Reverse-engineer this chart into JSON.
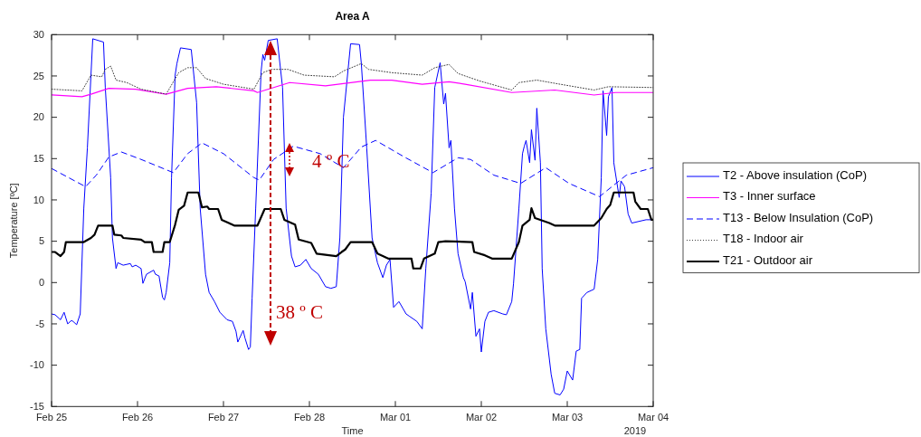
{
  "chart_data": {
    "type": "line",
    "title": "Area A",
    "xlabel": "Time",
    "ylabel": "Temperature [ºC]",
    "xlim": [
      "2019-02-25",
      "2019-03-04"
    ],
    "xticks": [
      {
        "value": "2019-02-25",
        "label": "Feb 25"
      },
      {
        "value": "2019-02-26",
        "label": "Feb 26"
      },
      {
        "value": "2019-02-27",
        "label": "Feb 27"
      },
      {
        "value": "2019-02-28",
        "label": "Feb 28"
      },
      {
        "value": "2019-03-01",
        "label": "Mar 01"
      },
      {
        "value": "2019-03-02",
        "label": "Mar 02"
      },
      {
        "value": "2019-03-03",
        "label": "Mar 03"
      },
      {
        "value": "2019-03-04",
        "label": "Mar 04"
      }
    ],
    "ylim": [
      -15,
      30
    ],
    "yticks": [
      -15,
      -10,
      -5,
      0,
      5,
      10,
      15,
      20,
      25,
      30
    ],
    "legend": "right",
    "annotations": [
      "38 º C",
      "4 º C",
      "2019"
    ],
    "series": [
      {
        "name": "T2 - Above insulation (CoP)",
        "color": "#0000ff",
        "line_style": "solid",
        "x": [
          "2019-02-25T00:00",
          "2019-02-25T01:00",
          "2019-02-25T02:30",
          "2019-02-25T03:30",
          "2019-02-25T04:30",
          "2019-02-25T05:30",
          "2019-02-25T06:00",
          "2019-02-25T07:00",
          "2019-02-25T08:00",
          "2019-02-25T09:00",
          "2019-02-25T10:00",
          "2019-02-25T11:30",
          "2019-02-25T14:30",
          "2019-02-25T15:00",
          "2019-02-25T16:30",
          "2019-02-25T17:00",
          "2019-02-25T18:00",
          "2019-02-25T18:30",
          "2019-02-25T20:00",
          "2019-02-25T22:00",
          "2019-02-25T22:30",
          "2019-02-25T23:30",
          "2019-02-26T01:00",
          "2019-02-26T01:30",
          "2019-02-26T02:30",
          "2019-02-26T04:30",
          "2019-02-26T05:00",
          "2019-02-26T06:00",
          "2019-02-26T07:00",
          "2019-02-26T07:30",
          "2019-02-26T08:00",
          "2019-02-26T09:00",
          "2019-02-26T09:30",
          "2019-02-26T10:30",
          "2019-02-26T11:00",
          "2019-02-26T12:00",
          "2019-02-26T15:00",
          "2019-02-26T16:30",
          "2019-02-26T17:30",
          "2019-02-26T19:00",
          "2019-02-26T20:00",
          "2019-02-26T21:30",
          "2019-02-26T23:00",
          "2019-02-27T01:00",
          "2019-02-27T02:30",
          "2019-02-27T03:30",
          "2019-02-27T04:00",
          "2019-02-27T05:30",
          "2019-02-27T06:00",
          "2019-02-27T07:00",
          "2019-02-27T07:30",
          "2019-02-27T08:00",
          "2019-02-27T09:00",
          "2019-02-27T10:30",
          "2019-02-27T11:00",
          "2019-02-27T11:30",
          "2019-02-27T12:30",
          "2019-02-27T15:00",
          "2019-02-27T16:30",
          "2019-02-27T17:30",
          "2019-02-27T19:00",
          "2019-02-27T20:00",
          "2019-02-27T21:30",
          "2019-02-27T23:00",
          "2019-02-28T00:30",
          "2019-02-28T02:30",
          "2019-02-28T04:30",
          "2019-02-28T06:00",
          "2019-02-28T07:30",
          "2019-02-28T08:30",
          "2019-02-28T09:30",
          "2019-02-28T11:30",
          "2019-02-28T14:00",
          "2019-02-28T14:30",
          "2019-02-28T16:00",
          "2019-02-28T17:30",
          "2019-02-28T19:00",
          "2019-02-28T20:30",
          "2019-02-28T21:30",
          "2019-02-28T22:30",
          "2019-02-28T23:30",
          "2019-03-01T01:00",
          "2019-03-01T03:00",
          "2019-03-01T04:00",
          "2019-03-01T06:00",
          "2019-03-01T07:30",
          "2019-03-01T08:30",
          "2019-03-01T10:00",
          "2019-03-01T11:00",
          "2019-03-01T12:30",
          "2019-03-01T13:30",
          "2019-03-01T14:00",
          "2019-03-01T15:00",
          "2019-03-01T15:30",
          "2019-03-01T16:30",
          "2019-03-01T17:30",
          "2019-03-01T19:00",
          "2019-03-01T19:30",
          "2019-03-01T21:00",
          "2019-03-01T21:30",
          "2019-03-01T22:30",
          "2019-03-01T23:30",
          "2019-03-02T00:00",
          "2019-03-02T01:00",
          "2019-03-02T02:00",
          "2019-03-02T03:30",
          "2019-03-02T06:00",
          "2019-03-02T07:00",
          "2019-03-02T08:30",
          "2019-03-02T09:00",
          "2019-03-02T10:30",
          "2019-03-02T11:30",
          "2019-03-02T12:00",
          "2019-03-02T12:30",
          "2019-03-02T13:30",
          "2019-03-02T14:00",
          "2019-03-02T15:00",
          "2019-03-02T15:30",
          "2019-03-02T16:30",
          "2019-03-02T17:00",
          "2019-03-02T18:00",
          "2019-03-02T19:30",
          "2019-03-02T20:30",
          "2019-03-02T22:00",
          "2019-03-02T23:00",
          "2019-03-03T00:00",
          "2019-03-03T01:30",
          "2019-03-03T02:30",
          "2019-03-03T03:30",
          "2019-03-03T04:00",
          "2019-03-03T05:30",
          "2019-03-03T07:30",
          "2019-03-03T08:30",
          "2019-03-03T09:30",
          "2019-03-03T10:00",
          "2019-03-03T11:00",
          "2019-03-03T11:30",
          "2019-03-03T12:30",
          "2019-03-03T13:00",
          "2019-03-03T14:30",
          "2019-03-03T15:00",
          "2019-03-03T16:00",
          "2019-03-03T17:00",
          "2019-03-03T18:00",
          "2019-03-03T22:00",
          "2019-03-04T00:00"
        ],
        "values": [
          -3.8,
          -3.9,
          -4.5,
          -3.6,
          -5.0,
          -4.6,
          -4.7,
          -5.1,
          -3.8,
          9.0,
          16.3,
          29.5,
          29.1,
          23.6,
          12.7,
          5.4,
          1.7,
          2.4,
          2.1,
          2.3,
          1.9,
          2.1,
          1.7,
          -0.1,
          1.0,
          1.5,
          1.0,
          0.8,
          -1.8,
          -2.1,
          -1.2,
          2.4,
          12.7,
          25.1,
          26.5,
          28.4,
          28.2,
          21.8,
          9.0,
          1.0,
          -1.2,
          -2.3,
          -3.6,
          -4.5,
          -4.7,
          -5.9,
          -7.2,
          -5.8,
          -6.7,
          -8.1,
          -7.8,
          -1.9,
          9.0,
          25.5,
          27.6,
          26.9,
          29.3,
          29.5,
          23.6,
          9.0,
          3.2,
          1.9,
          2.1,
          2.8,
          1.7,
          1.0,
          -0.5,
          -0.7,
          -0.5,
          5.4,
          20.0,
          28.9,
          28.8,
          26.5,
          16.3,
          5.4,
          2.4,
          0.6,
          2.1,
          2.8,
          -3.0,
          -2.3,
          -3.8,
          -4.1,
          -4.7,
          -5.6,
          1.7,
          10.8,
          23.6,
          26.6,
          21.6,
          22.9,
          16.3,
          17.2,
          9.0,
          3.5,
          0.6,
          0.1,
          -3.2,
          -1.2,
          -6.5,
          -5.6,
          -8.4,
          -4.7,
          -3.6,
          -3.4,
          -3.8,
          -3.9,
          -2.3,
          -0.1,
          9.0,
          15.6,
          16.5,
          17.2,
          14.5,
          18.5,
          14.8,
          21.1,
          14.5,
          1.7,
          -5.6,
          -11.1,
          -13.4,
          -13.6,
          -12.9,
          -10.7,
          -11.8,
          -8.3,
          -8.1,
          -1.9,
          -1.2,
          -0.8,
          2.8,
          12.7,
          23.2,
          17.8,
          22.5,
          23.6,
          14.5,
          10.3,
          12.3,
          11.6,
          8.3,
          7.2,
          7.6,
          7.6
        ]
      },
      {
        "name": "T3 - Inner surface",
        "color": "#ff00ff",
        "line_style": "solid",
        "x": [
          "2019-02-25T00:00",
          "2019-02-25T08:30",
          "2019-02-25T11:00",
          "2019-02-25T16:00",
          "2019-02-25T23:30",
          "2019-02-26T08:00",
          "2019-02-26T14:00",
          "2019-02-26T22:00",
          "2019-02-27T08:30",
          "2019-02-27T09:30",
          "2019-02-27T18:30",
          "2019-02-28T04:30",
          "2019-02-28T17:00",
          "2019-02-28T23:00",
          "2019-03-01T07:30",
          "2019-03-01T15:00",
          "2019-03-01T19:30",
          "2019-03-02T08:30",
          "2019-03-02T20:30",
          "2019-03-03T07:30",
          "2019-03-03T13:30",
          "2019-03-04T00:00"
        ],
        "values": [
          22.7,
          22.5,
          22.8,
          23.5,
          23.4,
          22.8,
          23.5,
          23.7,
          23.2,
          23.0,
          24.2,
          23.8,
          24.5,
          24.5,
          24.0,
          24.3,
          24.0,
          23.0,
          23.3,
          22.7,
          23.0,
          23.0
        ]
      },
      {
        "name": "T13 - Below Insulation (CoP)",
        "color": "#0000ff",
        "line_style": "dashed",
        "x": [
          "2019-02-25T00:00",
          "2019-02-25T09:30",
          "2019-02-25T12:30",
          "2019-02-25T16:00",
          "2019-02-25T19:30",
          "2019-02-26T01:00",
          "2019-02-26T10:00",
          "2019-02-26T14:00",
          "2019-02-26T18:00",
          "2019-02-27T00:00",
          "2019-02-27T08:30",
          "2019-02-27T10:00",
          "2019-02-27T14:00",
          "2019-02-27T19:30",
          "2019-02-28T03:00",
          "2019-02-28T09:30",
          "2019-02-28T14:30",
          "2019-02-28T18:30",
          "2019-03-01T02:30",
          "2019-03-01T10:30",
          "2019-03-01T17:30",
          "2019-03-01T21:00",
          "2019-03-02T03:30",
          "2019-03-02T11:00",
          "2019-03-02T18:00",
          "2019-03-03T00:30",
          "2019-03-03T09:00",
          "2019-03-03T16:30",
          "2019-03-04T00:00"
        ],
        "values": [
          13.8,
          11.6,
          13.0,
          15.2,
          15.8,
          14.9,
          13.3,
          15.6,
          16.9,
          15.6,
          12.7,
          12.4,
          14.9,
          16.5,
          15.6,
          13.9,
          16.4,
          17.2,
          15.2,
          13.3,
          15.1,
          14.9,
          13.0,
          12.0,
          13.9,
          12.0,
          10.4,
          13.0,
          13.9
        ]
      },
      {
        "name": "T18 - Indoor air",
        "color": "#404040",
        "line_style": "dotted",
        "x": [
          "2019-02-25T00:00",
          "2019-02-25T08:30",
          "2019-02-25T11:00",
          "2019-02-25T14:00",
          "2019-02-25T15:00",
          "2019-02-25T16:30",
          "2019-02-25T18:00",
          "2019-02-25T21:00",
          "2019-02-26T01:00",
          "2019-02-26T08:00",
          "2019-02-26T11:30",
          "2019-02-26T14:00",
          "2019-02-26T16:30",
          "2019-02-26T19:00",
          "2019-02-27T00:00",
          "2019-02-27T08:30",
          "2019-02-27T11:00",
          "2019-02-27T13:30",
          "2019-02-27T18:00",
          "2019-02-27T22:30",
          "2019-02-28T07:00",
          "2019-02-28T09:30",
          "2019-02-28T14:30",
          "2019-02-28T16:30",
          "2019-02-28T23:00",
          "2019-03-01T07:30",
          "2019-03-01T11:00",
          "2019-03-01T15:00",
          "2019-03-01T17:30",
          "2019-03-01T23:30",
          "2019-03-02T08:30",
          "2019-03-02T10:30",
          "2019-03-02T15:30",
          "2019-03-02T22:00",
          "2019-03-03T07:30",
          "2019-03-03T11:30",
          "2019-03-04T00:00"
        ],
        "values": [
          23.4,
          23.2,
          25.1,
          24.9,
          25.8,
          26.2,
          24.5,
          24.2,
          23.4,
          22.8,
          25.4,
          26.0,
          26.0,
          24.7,
          24.0,
          23.4,
          25.4,
          25.8,
          25.8,
          25.1,
          24.9,
          25.6,
          26.5,
          25.8,
          25.4,
          25.1,
          26.0,
          26.4,
          25.3,
          24.4,
          23.3,
          24.2,
          24.5,
          24.0,
          23.3,
          23.7,
          23.6
        ]
      },
      {
        "name": "T21 - Outdoor air",
        "color": "#000000",
        "line_style": "solid",
        "x": [
          "2019-02-25T00:00",
          "2019-02-25T01:00",
          "2019-02-25T02:30",
          "2019-02-25T03:30",
          "2019-02-25T04:00",
          "2019-02-25T09:00",
          "2019-02-25T11:00",
          "2019-02-25T12:00",
          "2019-02-25T13:00",
          "2019-02-25T17:00",
          "2019-02-25T17:30",
          "2019-02-25T19:30",
          "2019-02-25T20:00",
          "2019-02-26T01:00",
          "2019-02-26T02:00",
          "2019-02-26T04:00",
          "2019-02-26T04:30",
          "2019-02-26T07:00",
          "2019-02-26T07:30",
          "2019-02-26T09:00",
          "2019-02-26T10:30",
          "2019-02-26T11:30",
          "2019-02-26T13:00",
          "2019-02-26T14:00",
          "2019-02-26T17:00",
          "2019-02-26T18:00",
          "2019-02-26T19:30",
          "2019-02-26T20:00",
          "2019-02-26T22:30",
          "2019-02-26T23:30",
          "2019-02-27T01:30",
          "2019-02-27T03:00",
          "2019-02-27T09:30",
          "2019-02-27T11:30",
          "2019-02-27T16:00",
          "2019-02-27T17:00",
          "2019-02-27T20:00",
          "2019-02-27T21:00",
          "2019-02-28T00:30",
          "2019-02-28T02:00",
          "2019-02-28T07:30",
          "2019-02-28T09:00",
          "2019-02-28T10:00",
          "2019-02-28T11:30",
          "2019-02-28T17:30",
          "2019-02-28T19:00",
          "2019-02-28T22:00",
          "2019-03-01T04:30",
          "2019-03-01T05:00",
          "2019-03-01T07:00",
          "2019-03-01T08:00",
          "2019-03-01T11:00",
          "2019-03-01T12:00",
          "2019-03-01T14:00",
          "2019-03-01T21:30",
          "2019-03-01T22:00",
          "2019-03-02T01:00",
          "2019-03-02T03:00",
          "2019-03-02T08:30",
          "2019-03-02T10:30",
          "2019-03-02T11:30",
          "2019-03-02T13:30",
          "2019-03-02T14:00",
          "2019-03-02T15:00",
          "2019-03-02T19:00",
          "2019-03-02T20:30",
          "2019-03-03T07:30",
          "2019-03-03T09:30",
          "2019-03-03T11:00",
          "2019-03-03T12:00",
          "2019-03-03T13:00",
          "2019-03-03T18:30",
          "2019-03-03T19:00",
          "2019-03-03T20:30",
          "2019-03-03T22:30",
          "2019-03-03T23:30",
          "2019-03-04T00:00"
        ],
        "values": [
          3.7,
          3.7,
          3.2,
          3.7,
          4.9,
          4.9,
          5.4,
          5.8,
          6.9,
          6.9,
          5.8,
          5.7,
          5.4,
          5.2,
          4.9,
          4.9,
          3.7,
          3.7,
          4.9,
          4.9,
          7.0,
          8.8,
          9.3,
          10.9,
          10.9,
          9.1,
          9.2,
          8.9,
          8.9,
          7.6,
          7.2,
          6.9,
          6.9,
          8.9,
          8.9,
          7.6,
          7.0,
          5.2,
          4.8,
          3.5,
          3.2,
          3.7,
          4.0,
          4.9,
          4.9,
          3.5,
          2.9,
          2.9,
          1.7,
          1.7,
          2.9,
          3.5,
          4.9,
          5.0,
          4.9,
          3.7,
          3.3,
          2.9,
          2.9,
          4.9,
          6.9,
          7.6,
          9.0,
          7.8,
          7.2,
          6.9,
          6.9,
          7.8,
          8.9,
          9.4,
          10.9,
          10.9,
          9.8,
          8.9,
          8.9,
          7.6,
          7.6
        ]
      }
    ]
  }
}
